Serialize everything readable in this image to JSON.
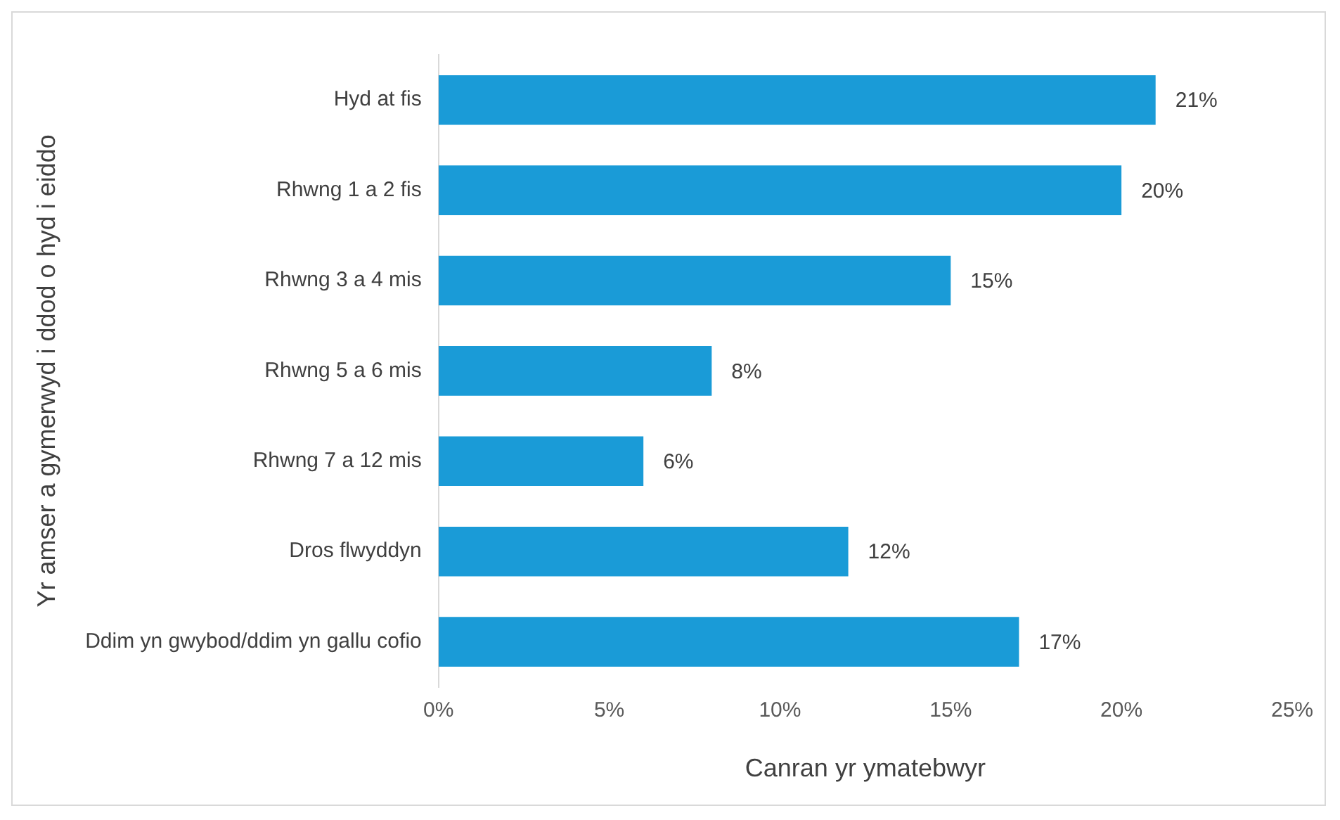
{
  "chart_data": {
    "type": "bar",
    "orientation": "horizontal",
    "xlabel": "Canran yr ymatebwyr",
    "ylabel": "Yr amser a gymerwyd i ddod o hyd i eiddo",
    "categories": [
      "Hyd at fis",
      "Rhwng 1 a 2 fis",
      "Rhwng 3 a 4 mis",
      "Rhwng 5 a 6 mis",
      "Rhwng 7 a 12 mis",
      "Dros flwyddyn",
      "Ddim yn gwybod/ddim yn gallu cofio"
    ],
    "values": [
      21,
      20,
      15,
      8,
      6,
      12,
      17
    ],
    "value_labels": [
      "21%",
      "20%",
      "15%",
      "8%",
      "6%",
      "12%",
      "17%"
    ],
    "color": "#1a9bd7",
    "xlim": [
      0,
      25
    ],
    "xticks": [
      {
        "value": 0,
        "label": "0%"
      },
      {
        "value": 5,
        "label": "5%"
      },
      {
        "value": 10,
        "label": "10%"
      },
      {
        "value": 15,
        "label": "15%"
      },
      {
        "value": 20,
        "label": "20%"
      },
      {
        "value": 25,
        "label": "25%"
      }
    ],
    "grid": false,
    "legend": false
  }
}
